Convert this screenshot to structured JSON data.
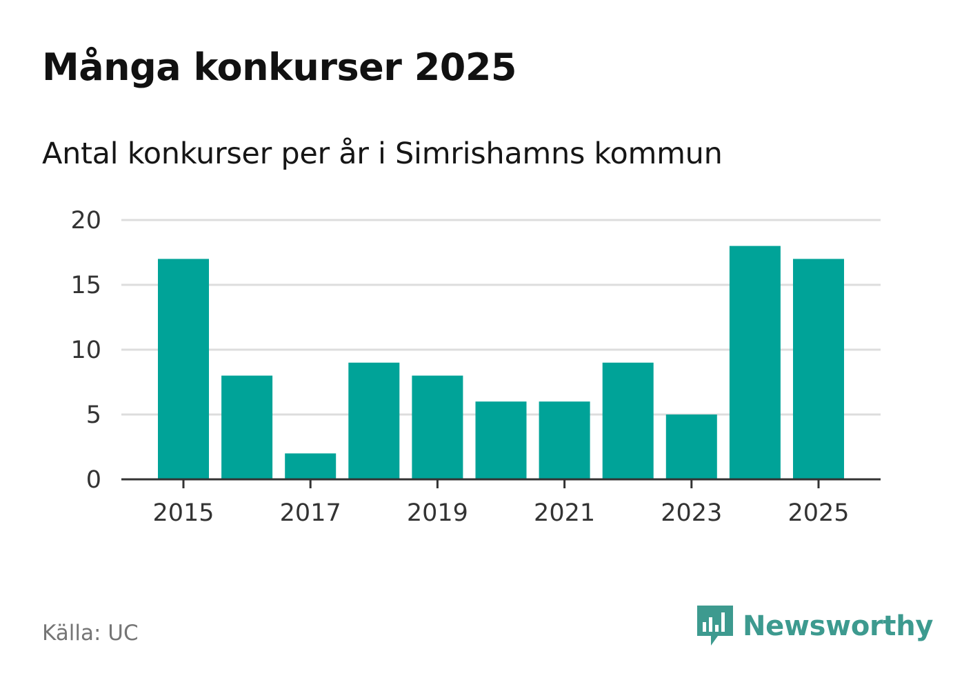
{
  "title": "Många konkurser 2025",
  "subtitle": "Antal konkurser per år i Simrishamns kommun",
  "source": "Källa: UC",
  "brand": {
    "name": "Newsworthy",
    "icon": "newsworthy-logo-icon",
    "color": "#3d9a8f"
  },
  "colors": {
    "bar": "#00a398",
    "grid": "#dddddd",
    "axis": "#333333"
  },
  "chart_data": {
    "type": "bar",
    "categories": [
      "2015",
      "2016",
      "2017",
      "2018",
      "2019",
      "2020",
      "2021",
      "2022",
      "2023",
      "2024",
      "2025"
    ],
    "values": [
      17,
      8,
      2,
      9,
      8,
      6,
      6,
      9,
      5,
      18,
      17
    ],
    "xlabel": "",
    "ylabel": "",
    "ylim": [
      0,
      20
    ],
    "yticks": [
      0,
      5,
      10,
      15,
      20
    ],
    "xtick_labels": [
      "2015",
      "2017",
      "2019",
      "2021",
      "2023",
      "2025"
    ],
    "grid": true,
    "legend": "none"
  }
}
